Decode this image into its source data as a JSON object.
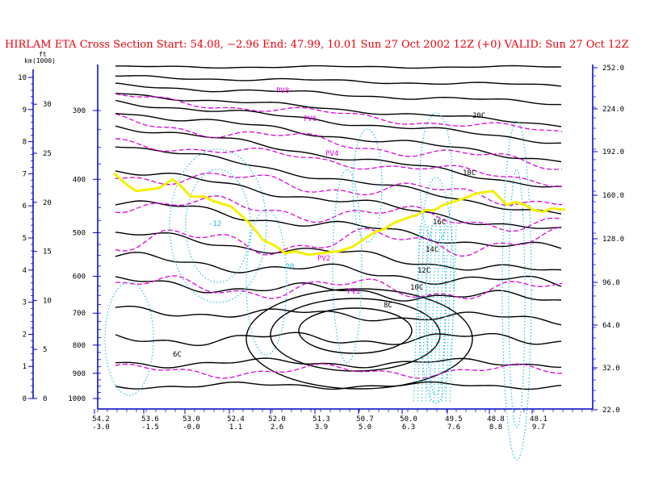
{
  "title": "HIRLAM ETA Cross Section Start:  54.08,  −2.96 End:  47.99,  10.01 Sun 27 Oct 2002 12Z  (+0) VALID: Sun 27 Oct 12Z",
  "colors": {
    "title": "#e8000b",
    "axes": "#0000cc",
    "temperature": "#000000",
    "pv": "#dd00dd",
    "vertical_velocity": "#16b9dd",
    "tropopause": "#f4f000"
  },
  "chart_data": {
    "type": "line",
    "title": "HIRLAM ETA Cross Section",
    "left_axis": {
      "km_label": "km",
      "ft_label": "ft",
      "ft_unit": "(1000)",
      "km_ticks": [
        "0",
        "1",
        "2",
        "3",
        "4",
        "5",
        "6",
        "7",
        "8",
        "9",
        "10"
      ],
      "ft_ticks": [
        "0",
        "5",
        "10",
        "15",
        "20",
        "25",
        "30"
      ],
      "pressure_ticks": [
        "1000",
        "900",
        "800",
        "700",
        "600",
        "500",
        "400",
        "300"
      ]
    },
    "right_axis": {
      "ticks": [
        "22.0",
        "32.0",
        "64.0",
        "96.0",
        "128.0",
        "160.0",
        "192.0",
        "224.0",
        "252.0"
      ]
    },
    "x_axis": {
      "lat_labels": [
        "54.2",
        "53.6",
        "53.0",
        "52.4",
        "52.0",
        "51.3",
        "50.7",
        "50.0",
        "49.5",
        "48.8",
        "48.1"
      ],
      "lon_labels": [
        "-3.0",
        "-1.5",
        "-0.0",
        "1.1",
        "2.6",
        "3.9",
        "5.0",
        "6.3",
        "7.6",
        "8.8",
        "9.7"
      ]
    },
    "temperature_labels": [
      "20C",
      "18C",
      "16C",
      "14C",
      "12C",
      "10C",
      "8C",
      "6C"
    ],
    "pv_labels": [
      "PV8",
      "PV6",
      "PV4",
      "PV2",
      "PV1"
    ],
    "vertical_velocity_labels": [
      "-12",
      "-20"
    ],
    "series": [
      {
        "name": "Tropopause",
        "x_frac": [
          0.0,
          0.03,
          0.05,
          0.1,
          0.13,
          0.15,
          0.17,
          0.2,
          0.22,
          0.26,
          0.3,
          0.33,
          0.36,
          0.38,
          0.4,
          0.43,
          0.46,
          0.5,
          0.53,
          0.56,
          0.58,
          0.6,
          0.62,
          0.65,
          0.67,
          0.69,
          0.71,
          0.73,
          0.75,
          0.78,
          0.8,
          0.82,
          0.84,
          0.86,
          0.87,
          0.89,
          0.91,
          0.93,
          0.95,
          0.97,
          1.0
        ],
        "pressure_hpa": [
          390,
          410,
          420,
          415,
          400,
          412,
          430,
          430,
          438,
          448,
          480,
          515,
          530,
          545,
          540,
          548,
          545,
          540,
          530,
          510,
          498,
          492,
          480,
          470,
          465,
          455,
          455,
          445,
          440,
          432,
          425,
          422,
          420,
          436,
          445,
          440,
          445,
          455,
          458,
          452,
          454
        ]
      }
    ]
  }
}
